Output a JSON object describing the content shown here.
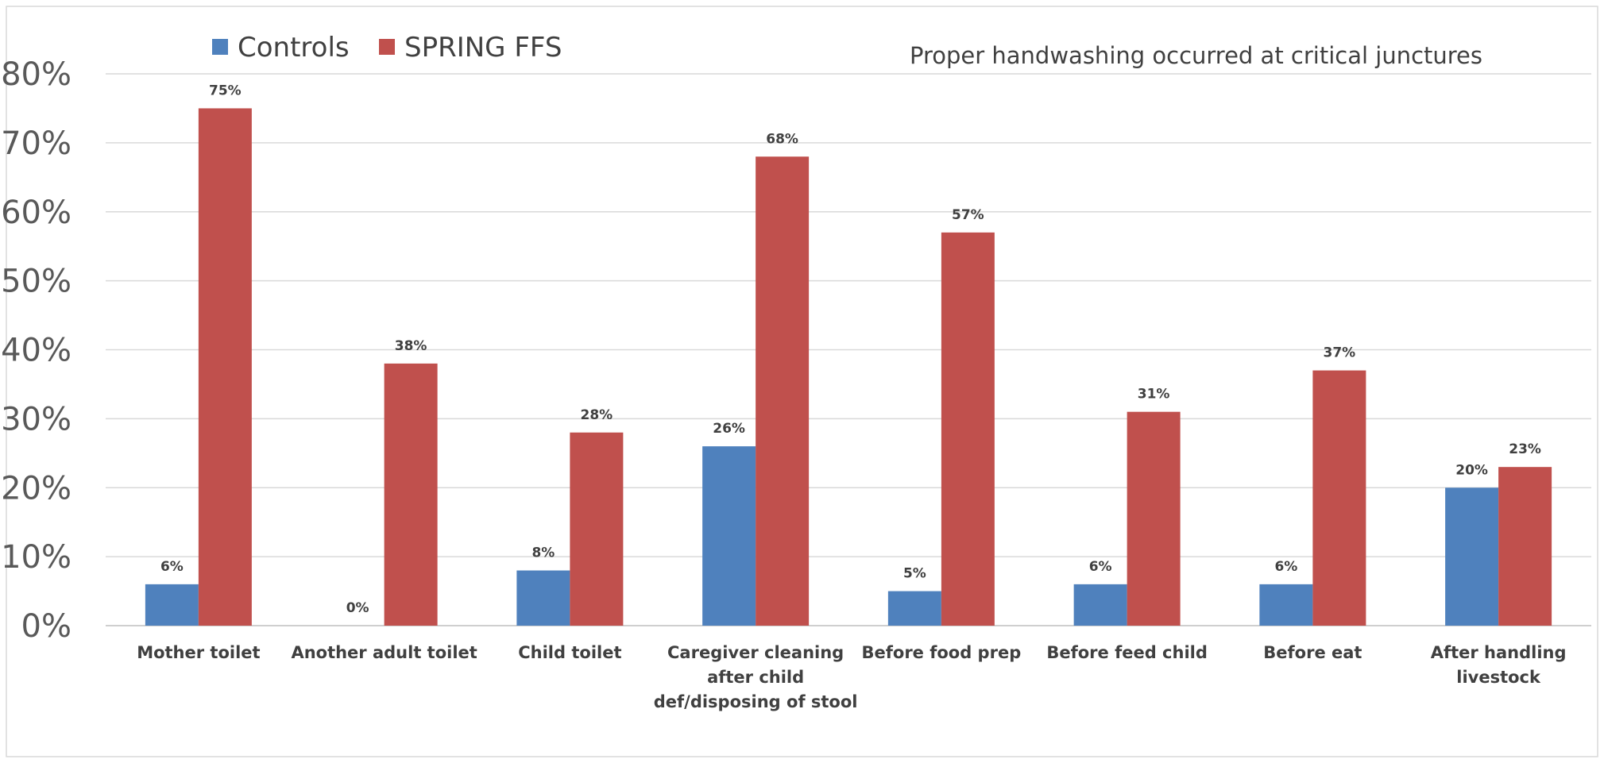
{
  "chart_data": {
    "type": "bar",
    "title": "Proper handwashing occurred at critical junctures",
    "xlabel": "",
    "ylabel": "",
    "ylim": [
      0,
      80
    ],
    "yticks": [
      "0%",
      "10%",
      "20%",
      "30%",
      "40%",
      "50%",
      "60%",
      "70%",
      "80%"
    ],
    "grid": true,
    "legend_position": "top-left",
    "categories": [
      [
        "Mother toilet"
      ],
      [
        "Another adult toilet"
      ],
      [
        "Child toilet"
      ],
      [
        "Caregiver cleaning",
        "after child",
        "def/disposing of stool"
      ],
      [
        "Before food prep"
      ],
      [
        "Before feed child"
      ],
      [
        "Before eat"
      ],
      [
        "After handling",
        "livestock"
      ]
    ],
    "series": [
      {
        "name": "Controls",
        "color": "#4f81bd",
        "values": [
          6,
          0,
          8,
          26,
          5,
          6,
          6,
          20
        ],
        "labels": [
          "6%",
          "0%",
          "8%",
          "26%",
          "5%",
          "6%",
          "6%",
          "20%"
        ]
      },
      {
        "name": "SPRING FFS",
        "color": "#c0504d",
        "values": [
          75,
          38,
          28,
          68,
          57,
          31,
          37,
          23
        ],
        "labels": [
          "75%",
          "38%",
          "28%",
          "68%",
          "57%",
          "31%",
          "37%",
          "23%"
        ]
      }
    ]
  }
}
